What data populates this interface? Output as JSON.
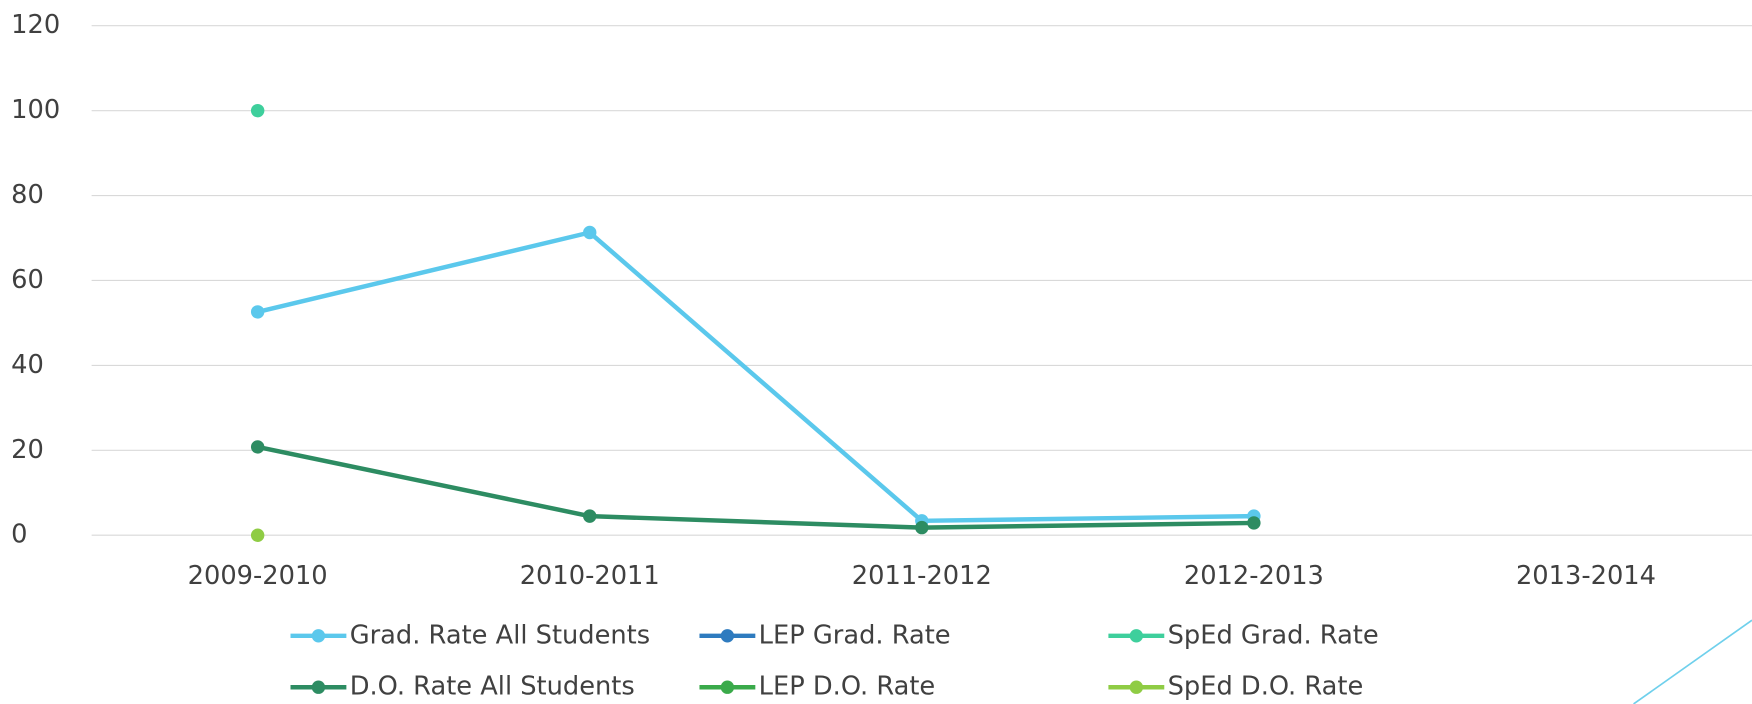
{
  "chart_data": {
    "type": "line",
    "categories": [
      "2009-2010",
      "2010-2011",
      "2011-2012",
      "2012-2013",
      "2013-2014"
    ],
    "series": [
      {
        "name": "Grad. Rate All Students",
        "color": "#5bc8ec",
        "values": [
          52.6,
          71.3,
          3.4,
          4.5,
          null
        ]
      },
      {
        "name": "LEP Grad. Rate",
        "color": "#2e7bbf",
        "values": [
          null,
          null,
          null,
          null,
          null
        ]
      },
      {
        "name": "SpEd Grad. Rate",
        "color": "#3ecf9c",
        "values": [
          100,
          null,
          null,
          null,
          null
        ]
      },
      {
        "name": "D.O. Rate All Students",
        "color": "#2d8c62",
        "values": [
          20.8,
          4.5,
          1.8,
          2.9,
          null
        ]
      },
      {
        "name": "LEP D.O. Rate",
        "color": "#3aaa4a",
        "values": [
          null,
          null,
          null,
          null,
          null
        ]
      },
      {
        "name": "SpEd D.O. Rate",
        "color": "#8fcc44",
        "values": [
          0,
          null,
          null,
          null,
          null
        ]
      }
    ],
    "ylim": [
      0,
      120
    ],
    "yticks": [
      0,
      20,
      40,
      60,
      80,
      100,
      120
    ],
    "grid": true
  }
}
